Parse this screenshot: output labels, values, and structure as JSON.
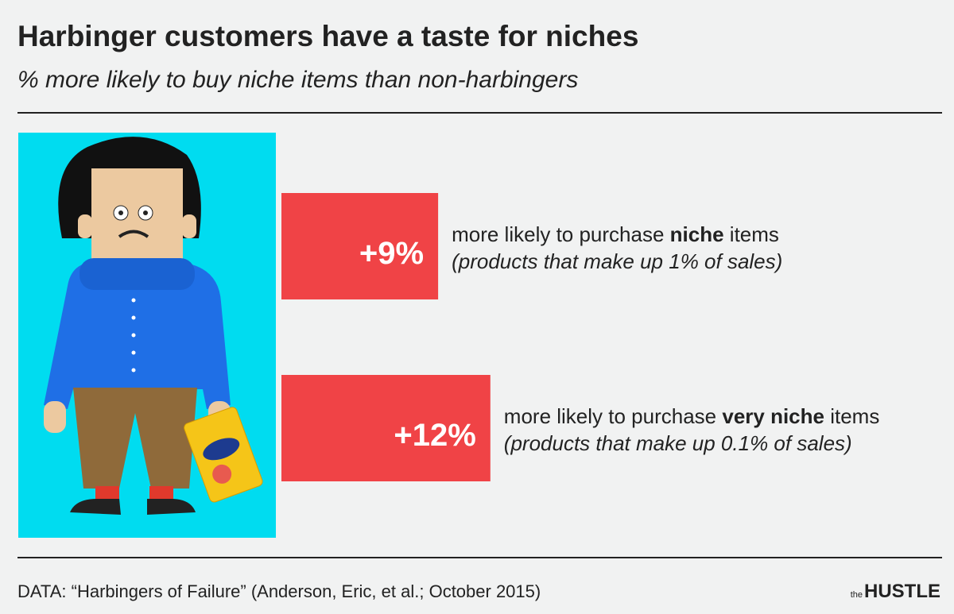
{
  "chart_data": {
    "type": "bar",
    "orientation": "horizontal",
    "title": "Harbinger customers have a taste for niches",
    "subtitle": "% more likely to buy niche items than non-harbingers",
    "values": [
      9,
      12
    ],
    "value_labels": [
      "+9%",
      "+12%"
    ],
    "color": "#f04346",
    "descriptions": [
      [
        "more likely to purchase ",
        "niche",
        " items"
      ],
      [
        "more likely to purchase ",
        "very niche",
        " items"
      ]
    ],
    "notes": [
      "(products that make up 1% of sales)",
      "(products that make up 0.1% of sales)"
    ],
    "source": "DATA: “Harbingers of Failure” (Anderson, Eric, et al.; October 2015)",
    "brand": [
      "the",
      "HUSTLE"
    ]
  }
}
